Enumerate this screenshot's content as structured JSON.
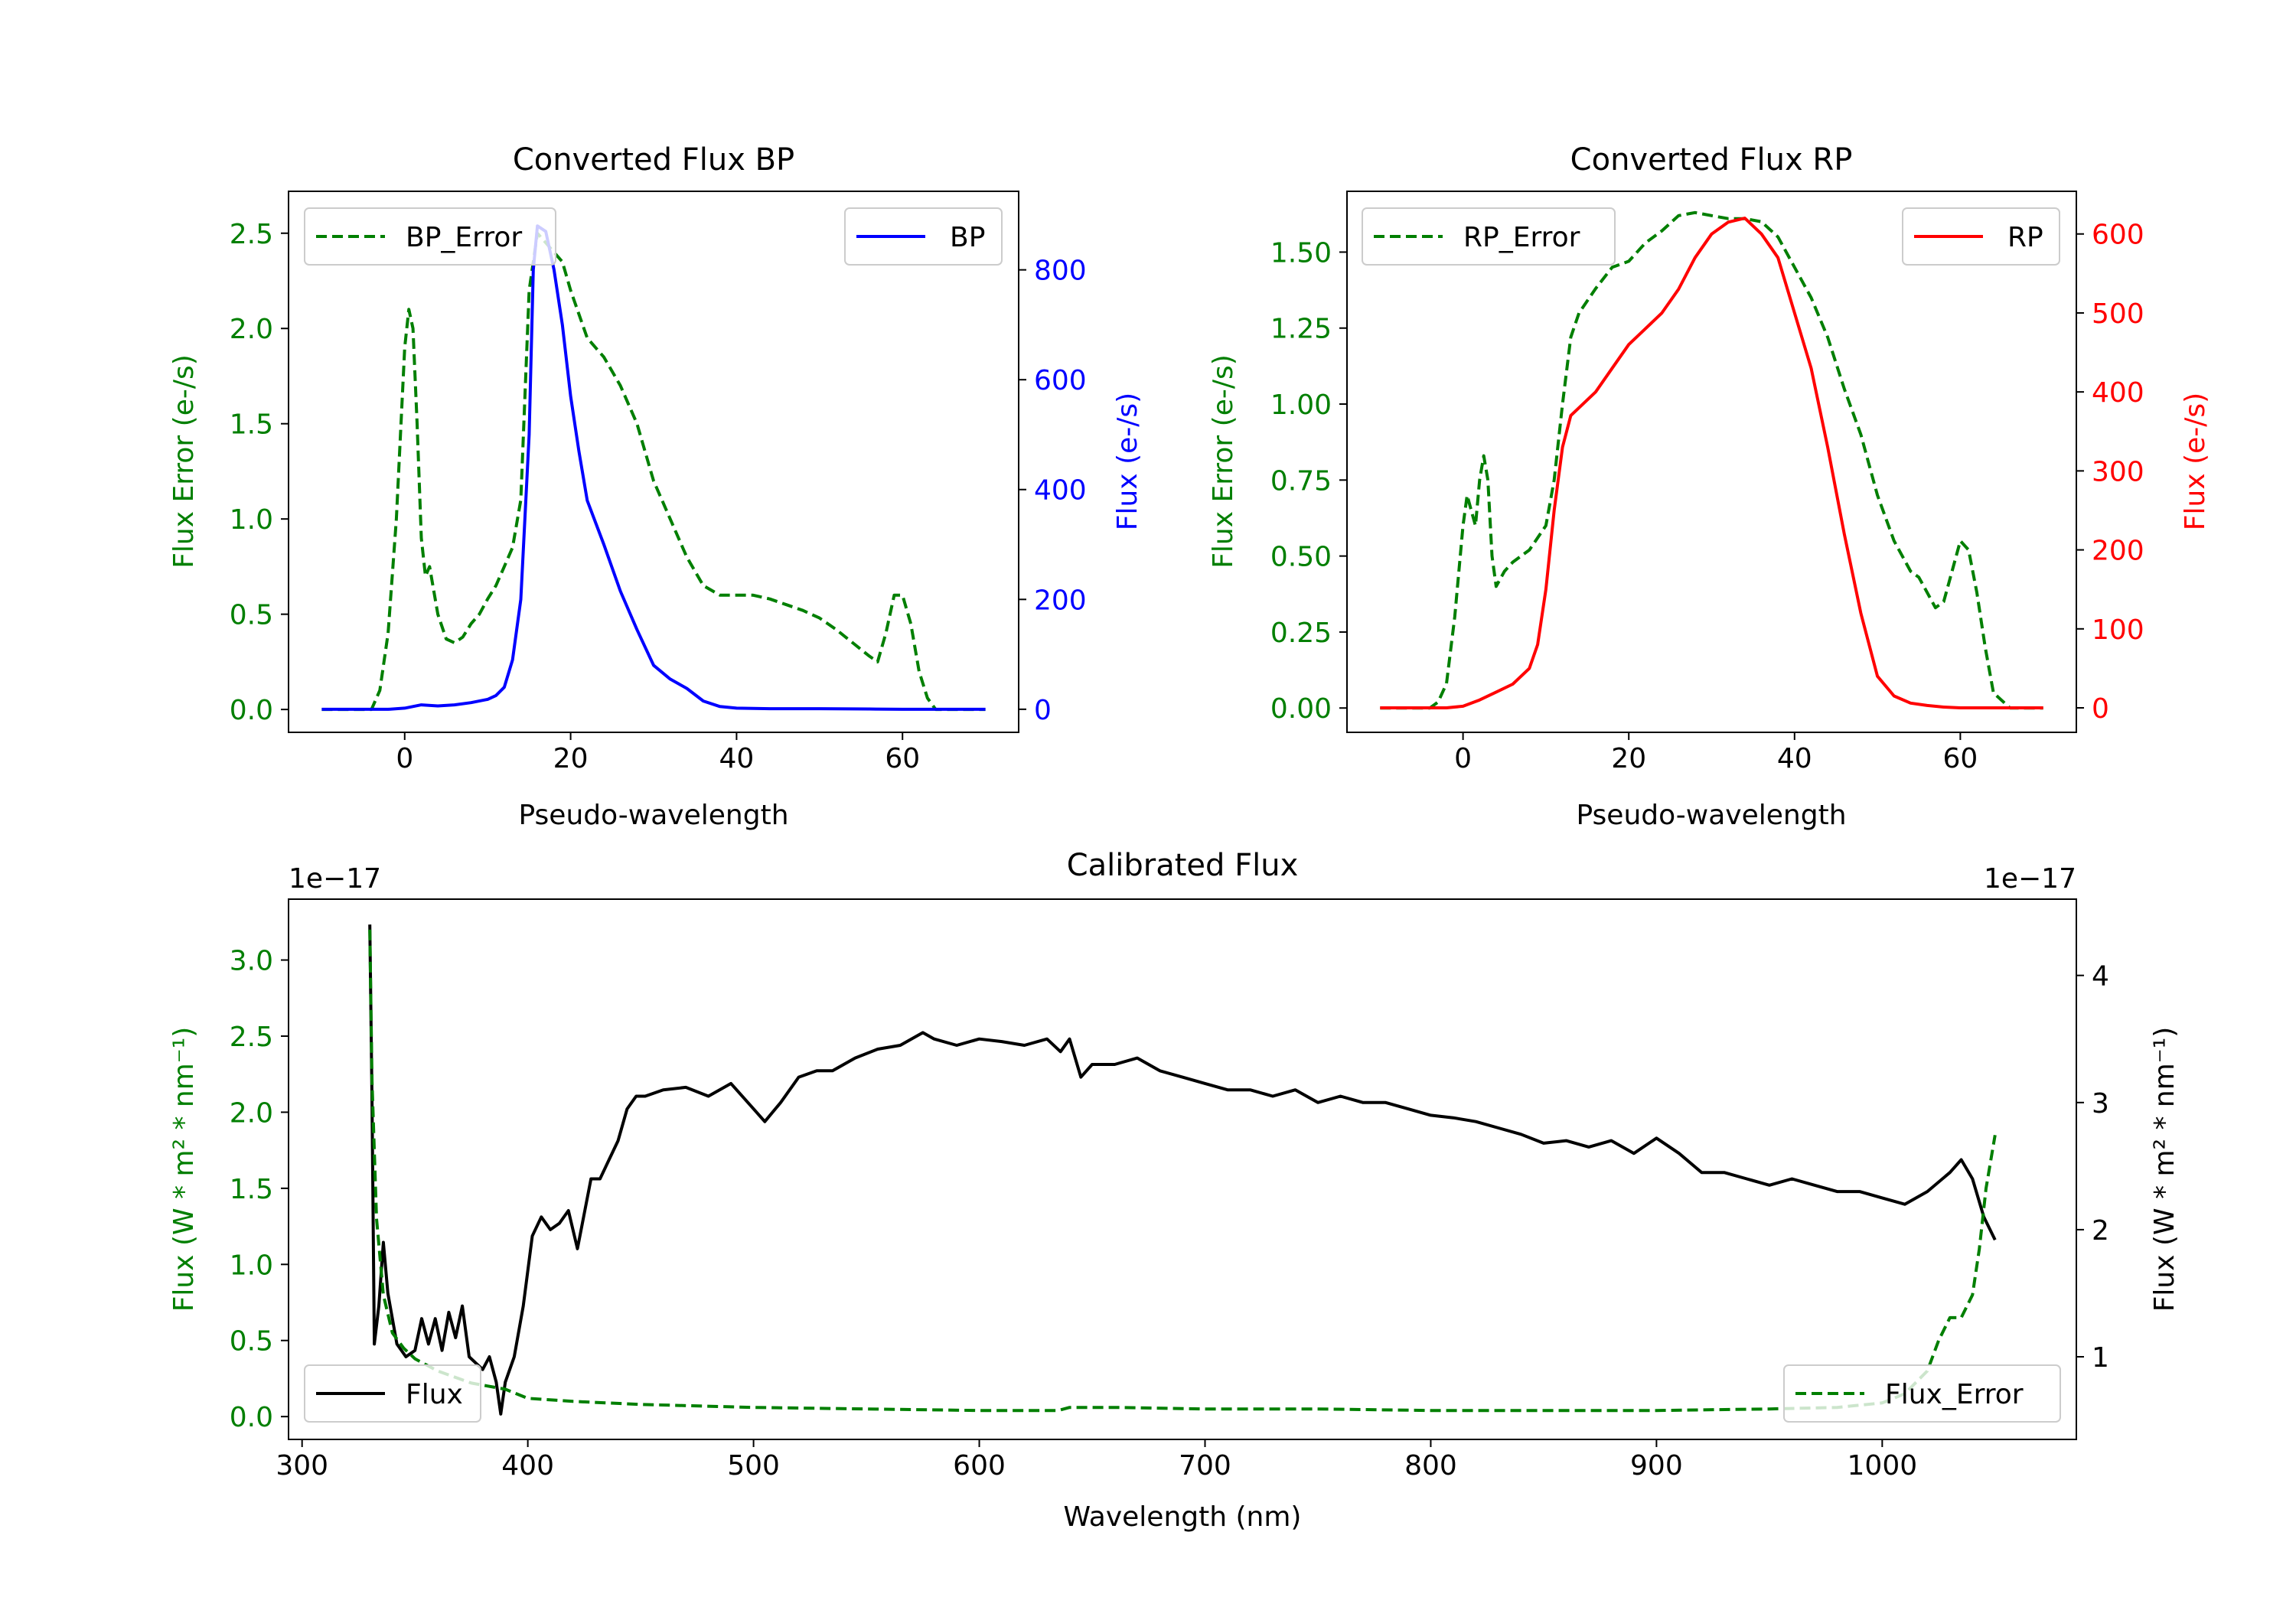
{
  "colors": {
    "bp_error": "#007f00",
    "bp": "#0000ff",
    "rp_error": "#007f00",
    "rp": "#ff0000",
    "flux": "#000000",
    "flux_error": "#007f00",
    "axis": "#000000",
    "legend_border": "#cccccc"
  },
  "chart_data": [
    {
      "type": "line",
      "title": "Converted Flux BP",
      "xlabel": "Pseudo-wavelength",
      "ylabel_left": "Flux Error (e-/s)",
      "ylabel_right": "Flux (e-/s)",
      "xlim": [
        -14,
        74
      ],
      "ylim_left": [
        -0.12,
        2.72
      ],
      "ylim_right": [
        -42,
        943
      ],
      "xticks": [
        0,
        20,
        40,
        60
      ],
      "xtick_labels": [
        "0",
        "20",
        "40",
        "60"
      ],
      "yticks_left": [
        0.0,
        0.5,
        1.0,
        1.5,
        2.0,
        2.5
      ],
      "ytick_labels_left": [
        "0.0",
        "0.5",
        "1.0",
        "1.5",
        "2.0",
        "2.5"
      ],
      "yticks_right": [
        0,
        200,
        400,
        600,
        800
      ],
      "ytick_labels_right": [
        "0",
        "200",
        "400",
        "600",
        "800"
      ],
      "legend_left": "top-left",
      "legend_right": "top-right",
      "series": [
        {
          "name": "BP_Error",
          "axis": "left",
          "style": "dashed",
          "color": "#007f00",
          "x": [
            -10,
            -4,
            -3,
            -2,
            -1,
            0,
            0.5,
            1,
            1.5,
            2,
            2.5,
            3,
            4,
            5,
            6,
            7,
            8,
            9,
            10,
            11,
            12,
            13,
            14,
            15,
            16,
            17,
            18,
            19,
            20,
            22,
            24,
            26,
            28,
            30,
            32,
            34,
            36,
            38,
            40,
            42,
            44,
            46,
            48,
            50,
            52,
            54,
            56,
            57,
            58,
            59,
            60,
            61,
            62,
            63,
            64,
            66,
            70
          ],
          "values": [
            0.0,
            0.0,
            0.1,
            0.4,
            1.0,
            1.9,
            2.1,
            2.0,
            1.5,
            0.9,
            0.7,
            0.75,
            0.5,
            0.37,
            0.35,
            0.38,
            0.45,
            0.5,
            0.58,
            0.65,
            0.75,
            0.85,
            1.1,
            2.2,
            2.5,
            2.45,
            2.4,
            2.35,
            2.2,
            1.95,
            1.85,
            1.7,
            1.5,
            1.2,
            1.0,
            0.8,
            0.65,
            0.6,
            0.6,
            0.6,
            0.58,
            0.55,
            0.52,
            0.48,
            0.42,
            0.35,
            0.28,
            0.25,
            0.4,
            0.6,
            0.6,
            0.45,
            0.2,
            0.06,
            0.0,
            0.0,
            0.0
          ]
        },
        {
          "name": "BP",
          "axis": "right",
          "style": "solid",
          "color": "#0000ff",
          "x": [
            -10,
            -6,
            -2,
            0,
            2,
            4,
            6,
            8,
            10,
            11,
            12,
            13,
            14,
            15,
            15.5,
            16,
            17,
            18,
            19,
            20,
            21,
            22,
            24,
            26,
            28,
            30,
            32,
            34,
            36,
            38,
            40,
            44,
            50,
            56,
            60,
            66,
            70
          ],
          "values": [
            0,
            0,
            0,
            2,
            8,
            6,
            8,
            12,
            18,
            25,
            40,
            90,
            200,
            500,
            800,
            880,
            870,
            800,
            700,
            570,
            470,
            380,
            300,
            215,
            145,
            80,
            55,
            38,
            15,
            5,
            2,
            1,
            1,
            0.5,
            0,
            0,
            0
          ]
        }
      ]
    },
    {
      "type": "line",
      "title": "Converted Flux RP",
      "xlabel": "Pseudo-wavelength",
      "ylabel_left": "Flux Error (e-/s)",
      "ylabel_right": "Flux (e-/s)",
      "xlim": [
        -14,
        74
      ],
      "ylim_left": [
        -0.08,
        1.7
      ],
      "ylim_right": [
        -31,
        654
      ],
      "xticks": [
        0,
        20,
        40,
        60
      ],
      "xtick_labels": [
        "0",
        "20",
        "40",
        "60"
      ],
      "yticks_left": [
        0.0,
        0.25,
        0.5,
        0.75,
        1.0,
        1.25,
        1.5
      ],
      "ytick_labels_left": [
        "0.00",
        "0.25",
        "0.50",
        "0.75",
        "1.00",
        "1.25",
        "1.50"
      ],
      "yticks_right": [
        0,
        100,
        200,
        300,
        400,
        500,
        600
      ],
      "ytick_labels_right": [
        "0",
        "100",
        "200",
        "300",
        "400",
        "500",
        "600"
      ],
      "legend_left": "top-left",
      "legend_right": "top-right",
      "series": [
        {
          "name": "RP_Error",
          "axis": "left",
          "style": "dashed",
          "color": "#007f00",
          "x": [
            -10,
            -4,
            -3,
            -2,
            -1,
            0,
            0.5,
            1,
            1.5,
            2,
            2.5,
            3,
            3.5,
            4,
            5,
            6,
            8,
            10,
            11,
            12,
            13,
            14,
            16,
            18,
            20,
            22,
            24,
            26,
            28,
            30,
            32,
            34,
            36,
            38,
            40,
            42,
            44,
            46,
            48,
            50,
            52,
            54,
            55,
            56,
            57,
            58,
            59,
            60,
            61,
            62,
            63,
            64,
            66,
            70
          ],
          "values": [
            0.0,
            0.0,
            0.02,
            0.08,
            0.3,
            0.6,
            0.7,
            0.65,
            0.6,
            0.75,
            0.83,
            0.75,
            0.5,
            0.4,
            0.45,
            0.48,
            0.52,
            0.6,
            0.75,
            1.0,
            1.22,
            1.3,
            1.38,
            1.45,
            1.47,
            1.53,
            1.57,
            1.62,
            1.63,
            1.62,
            1.61,
            1.61,
            1.6,
            1.55,
            1.45,
            1.35,
            1.22,
            1.05,
            0.9,
            0.7,
            0.55,
            0.45,
            0.43,
            0.38,
            0.33,
            0.35,
            0.45,
            0.55,
            0.52,
            0.38,
            0.2,
            0.05,
            0.0,
            0.0
          ]
        },
        {
          "name": "RP",
          "axis": "right",
          "style": "solid",
          "color": "#ff0000",
          "x": [
            -10,
            -6,
            -2,
            0,
            2,
            4,
            6,
            8,
            9,
            10,
            11,
            12,
            13,
            14,
            16,
            18,
            20,
            22,
            24,
            26,
            28,
            30,
            32,
            34,
            36,
            38,
            40,
            42,
            44,
            46,
            48,
            50,
            52,
            54,
            56,
            58,
            60,
            64,
            70
          ],
          "values": [
            0,
            0,
            0,
            2,
            10,
            20,
            30,
            50,
            80,
            150,
            250,
            330,
            370,
            380,
            400,
            430,
            460,
            480,
            500,
            530,
            570,
            600,
            615,
            620,
            600,
            570,
            500,
            430,
            330,
            220,
            120,
            40,
            15,
            6,
            3,
            1,
            0,
            0,
            0
          ]
        }
      ]
    },
    {
      "type": "line",
      "title": "Calibrated Flux",
      "xlabel": "Wavelength (nm)",
      "ylabel_left": "Flux (W * m² * nm⁻¹)",
      "ylabel_right": "Flux (W * m² * nm⁻¹)",
      "offset_left": "1e−17",
      "offset_right": "1e−17",
      "xlim": [
        294,
        1086
      ],
      "ylim_left": [
        -0.15,
        3.4
      ],
      "ylim_right": [
        0.35,
        4.6
      ],
      "xticks": [
        300,
        400,
        500,
        600,
        700,
        800,
        900,
        1000
      ],
      "xtick_labels": [
        "300",
        "400",
        "500",
        "600",
        "700",
        "800",
        "900",
        "1000"
      ],
      "yticks_left": [
        0.0,
        0.5,
        1.0,
        1.5,
        2.0,
        2.5,
        3.0
      ],
      "ytick_labels_left": [
        "0.0",
        "0.5",
        "1.0",
        "1.5",
        "2.0",
        "2.5",
        "3.0"
      ],
      "yticks_right": [
        1,
        2,
        3,
        4
      ],
      "ytick_labels_right": [
        "1",
        "2",
        "3",
        "4"
      ],
      "legend_left": "bottom-left",
      "legend_right": "bottom-right",
      "series": [
        {
          "name": "Flux",
          "axis": "right",
          "style": "solid",
          "color": "#000000",
          "x": [
            330,
            331,
            332,
            334,
            336,
            338,
            342,
            346,
            350,
            353,
            356,
            359,
            362,
            365,
            368,
            371,
            374,
            377,
            380,
            383,
            386,
            388,
            390,
            394,
            398,
            402,
            406,
            410,
            414,
            418,
            422,
            428,
            432,
            436,
            440,
            444,
            448,
            452,
            460,
            470,
            480,
            490,
            500,
            505,
            512,
            520,
            528,
            535,
            545,
            555,
            565,
            575,
            580,
            590,
            600,
            610,
            620,
            630,
            636,
            640,
            645,
            650,
            660,
            670,
            680,
            690,
            700,
            710,
            720,
            730,
            740,
            750,
            760,
            770,
            780,
            790,
            800,
            810,
            820,
            830,
            840,
            850,
            860,
            870,
            880,
            890,
            900,
            910,
            920,
            930,
            940,
            950,
            960,
            970,
            980,
            990,
            1000,
            1010,
            1020,
            1030,
            1035,
            1040,
            1045,
            1050
          ],
          "values": [
            4.4,
            3.0,
            1.1,
            1.4,
            1.9,
            1.5,
            1.1,
            1.0,
            1.05,
            1.3,
            1.1,
            1.3,
            1.05,
            1.35,
            1.15,
            1.4,
            1.0,
            0.95,
            0.9,
            1.0,
            0.8,
            0.55,
            0.8,
            1.0,
            1.4,
            1.95,
            2.1,
            2.0,
            2.05,
            2.15,
            1.85,
            2.4,
            2.4,
            2.55,
            2.7,
            2.95,
            3.05,
            3.05,
            3.1,
            3.12,
            3.05,
            3.15,
            2.95,
            2.85,
            3.0,
            3.2,
            3.25,
            3.25,
            3.35,
            3.42,
            3.45,
            3.55,
            3.5,
            3.45,
            3.5,
            3.48,
            3.45,
            3.5,
            3.4,
            3.5,
            3.2,
            3.3,
            3.3,
            3.35,
            3.25,
            3.2,
            3.15,
            3.1,
            3.1,
            3.05,
            3.1,
            3.0,
            3.05,
            3.0,
            3.0,
            2.95,
            2.9,
            2.88,
            2.85,
            2.8,
            2.75,
            2.68,
            2.7,
            2.65,
            2.7,
            2.6,
            2.72,
            2.6,
            2.45,
            2.45,
            2.4,
            2.35,
            2.4,
            2.35,
            2.3,
            2.3,
            2.25,
            2.2,
            2.3,
            2.45,
            2.55,
            2.4,
            2.1,
            1.92
          ]
        },
        {
          "name": "Flux_Error",
          "axis": "left",
          "style": "dashed",
          "color": "#007f00",
          "x": [
            330,
            331,
            333,
            336,
            340,
            345,
            350,
            360,
            375,
            390,
            400,
            420,
            450,
            500,
            550,
            600,
            635,
            640,
            660,
            700,
            750,
            800,
            850,
            900,
            950,
            980,
            1000,
            1010,
            1020,
            1025,
            1030,
            1035,
            1040,
            1043,
            1046,
            1050
          ],
          "values": [
            3.2,
            2.2,
            1.3,
            0.8,
            0.55,
            0.45,
            0.38,
            0.3,
            0.22,
            0.18,
            0.12,
            0.1,
            0.08,
            0.06,
            0.05,
            0.04,
            0.04,
            0.06,
            0.06,
            0.05,
            0.05,
            0.04,
            0.04,
            0.04,
            0.05,
            0.06,
            0.09,
            0.15,
            0.3,
            0.5,
            0.65,
            0.65,
            0.8,
            1.1,
            1.5,
            1.85
          ]
        }
      ]
    }
  ]
}
